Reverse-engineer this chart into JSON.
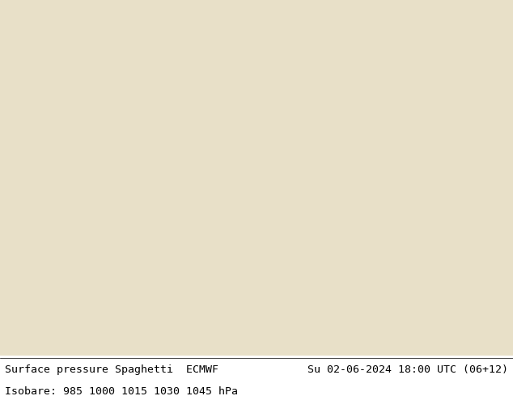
{
  "title_left": "Surface pressure Spaghetti  ECMWF",
  "title_right": "Su 02-06-2024 18:00 UTC (06+12)",
  "subtitle": "Isobare: 985 1000 1015 1030 1045 hPa",
  "bg_color": "#ffffff",
  "text_color": "#000000",
  "font_size_title": 9.5,
  "font_size_subtitle": 9.5,
  "fig_width": 6.34,
  "fig_height": 4.9,
  "dpi": 100,
  "lon_min": 20,
  "lon_max": 160,
  "lat_min": -10,
  "lat_max": 80,
  "num_members": 51,
  "isobars": [
    985,
    1000,
    1015,
    1030,
    1045
  ],
  "spaghetti_colors": [
    "#ff0000",
    "#00cc00",
    "#0000ff",
    "#ff00ff",
    "#00cccc",
    "#ff8800",
    "#8800cc",
    "#00cc88",
    "#ff0088",
    "#888800",
    "#008888",
    "#cc0000",
    "#0000aa",
    "#ff6666",
    "#66ff66",
    "#6666ff",
    "#ffaa44",
    "#44ffaa",
    "#aa44ff",
    "#ff44aa",
    "#aacc00",
    "#00aacc",
    "#cc6600",
    "#6600cc",
    "#00cc66",
    "#cc0066",
    "#666600",
    "#006666",
    "#cc4400",
    "#4400cc",
    "#00cc44",
    "#cc0044",
    "#444400",
    "#004444",
    "#cc8800",
    "#8800cc",
    "#00cc88",
    "#cc0088",
    "#888800",
    "#008888",
    "#ff2200",
    "#00ff22",
    "#2200ff",
    "#ff0022",
    "#22ff00",
    "#0022ff",
    "#ff2222",
    "#22ff22",
    "#2222ff",
    "#ffff22",
    "#22ffff"
  ]
}
